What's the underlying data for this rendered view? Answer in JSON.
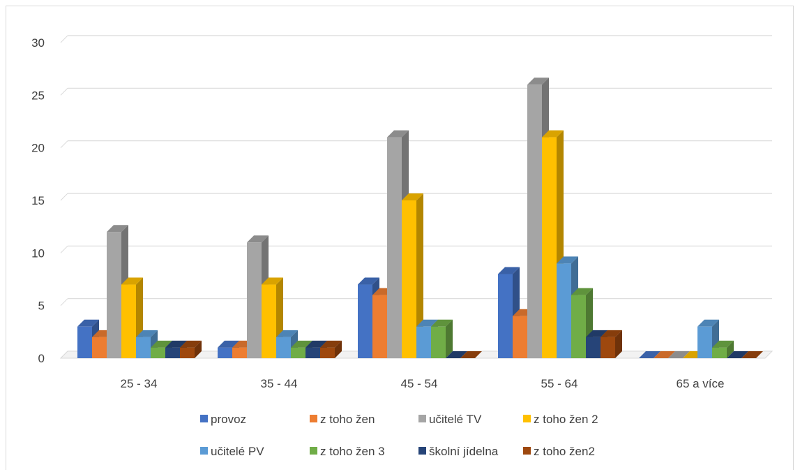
{
  "chart_data": {
    "type": "bar",
    "three_d": true,
    "title": "",
    "xlabel": "",
    "ylabel": "",
    "ylim": [
      0,
      30
    ],
    "y_ticks": [
      0,
      5,
      10,
      15,
      20,
      25,
      30
    ],
    "grid": true,
    "legend_position": "bottom",
    "categories": [
      "25 - 34",
      "35 - 44",
      "45 - 54",
      "55 - 64",
      "65 a více"
    ],
    "series": [
      {
        "name": "provoz",
        "color": "#4472c4",
        "values": [
          3,
          1,
          7,
          8,
          0
        ]
      },
      {
        "name": "z toho žen",
        "color": "#ed7d31",
        "values": [
          2,
          1,
          6,
          4,
          0
        ]
      },
      {
        "name": "učitelé TV",
        "color": "#a5a5a5",
        "values": [
          12,
          11,
          21,
          26,
          0
        ]
      },
      {
        "name": "z toho žen 2",
        "color": "#ffc000",
        "values": [
          7,
          7,
          15,
          21,
          0
        ]
      },
      {
        "name": "učitelé PV",
        "color": "#5b9bd5",
        "values": [
          2,
          2,
          3,
          9,
          3
        ]
      },
      {
        "name": "z toho žen 3",
        "color": "#70ad47",
        "values": [
          1,
          1,
          3,
          6,
          1
        ]
      },
      {
        "name": "školní jídelna",
        "color": "#264478",
        "values": [
          1,
          1,
          0,
          2,
          0
        ]
      },
      {
        "name": "z toho žen2",
        "color": "#9e480e",
        "values": [
          1,
          1,
          0,
          2,
          0
        ]
      }
    ]
  }
}
